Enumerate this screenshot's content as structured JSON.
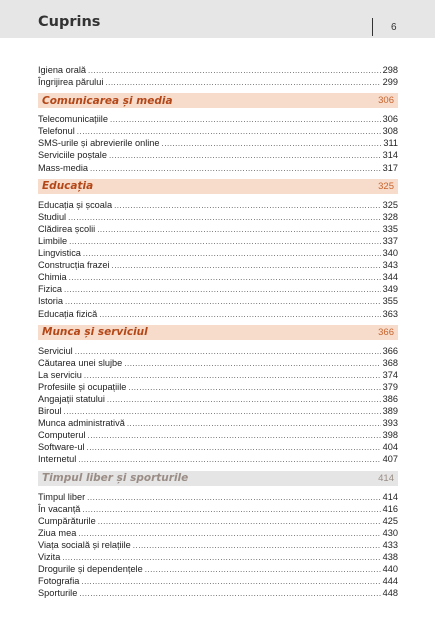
{
  "header": {
    "title": "Cuprins",
    "page": "6"
  },
  "groups": [
    {
      "title": "",
      "page": "",
      "items": [
        {
          "label": "Igiena orală",
          "page": "298"
        },
        {
          "label": "Îngrijirea părului",
          "page": "299"
        }
      ]
    },
    {
      "title": "Comunicarea și media",
      "page": "306",
      "items": [
        {
          "label": "Telecomunicațiile",
          "page": "306"
        },
        {
          "label": "Telefonul",
          "page": "308"
        },
        {
          "label": "SMS-urile și abrevierile online",
          "page": "311"
        },
        {
          "label": "Serviciile poștale",
          "page": "314"
        },
        {
          "label": "Mass-media",
          "page": "317"
        }
      ]
    },
    {
      "title": "Educația",
      "page": "325",
      "items": [
        {
          "label": "Educația și școala",
          "page": "325"
        },
        {
          "label": "Studiul",
          "page": "328"
        },
        {
          "label": "Clădirea școlii",
          "page": "335"
        },
        {
          "label": "Limbile",
          "page": "337"
        },
        {
          "label": "Lingvistica",
          "page": "340"
        },
        {
          "label": "Construcția frazei",
          "page": "343"
        },
        {
          "label": "Chimia",
          "page": "344"
        },
        {
          "label": "Fizica",
          "page": "349"
        },
        {
          "label": "Istoria",
          "page": "355"
        },
        {
          "label": "Educația fizică",
          "page": "363"
        }
      ]
    },
    {
      "title": "Munca și serviciul",
      "page": "366",
      "items": [
        {
          "label": "Serviciul",
          "page": "366"
        },
        {
          "label": "Căutarea unei slujbe",
          "page": "368"
        },
        {
          "label": "La serviciu",
          "page": "374"
        },
        {
          "label": "Profesiile și ocupațiile",
          "page": "379"
        },
        {
          "label": "Angajații statului",
          "page": "386"
        },
        {
          "label": "Biroul",
          "page": "389"
        },
        {
          "label": "Munca administrativă",
          "page": "393"
        },
        {
          "label": "Computerul",
          "page": "398"
        },
        {
          "label": "Software-ul",
          "page": "404"
        },
        {
          "label": "Internetul",
          "page": "407"
        }
      ]
    },
    {
      "title": "Timpul liber și sporturile",
      "page": "414",
      "muted": true,
      "items": [
        {
          "label": "Timpul liber",
          "page": "414"
        },
        {
          "label": "În vacanță",
          "page": "416"
        },
        {
          "label": "Cumpărăturile",
          "page": "425"
        },
        {
          "label": "Ziua mea",
          "page": "430"
        },
        {
          "label": "Viața socială și relațiile",
          "page": "433"
        },
        {
          "label": "Vizita",
          "page": "438"
        },
        {
          "label": "Drogurile și dependențele",
          "page": "440"
        },
        {
          "label": "Fotografia",
          "page": "444"
        },
        {
          "label": "Sporturile",
          "page": "448"
        }
      ]
    }
  ]
}
